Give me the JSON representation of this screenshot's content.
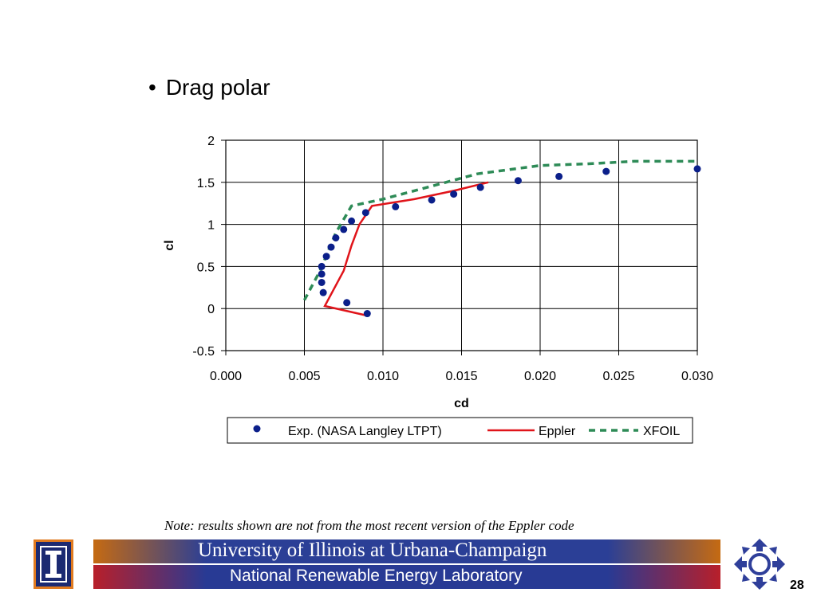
{
  "slide": {
    "bullet": "•",
    "title": "Drag polar",
    "note": "Note: results shown are not from the most recent version of the Eppler code",
    "page_number": "28"
  },
  "footer": {
    "university": "University of Illinois at Urbana-Champaign",
    "lab": "National Renewable Energy Laboratory"
  },
  "chart_data": {
    "type": "scatter",
    "xlabel": "cd",
    "ylabel": "cl",
    "xlim": [
      0.0,
      0.03
    ],
    "ylim": [
      -0.5,
      2
    ],
    "x_ticks": [
      "0.000",
      "0.005",
      "0.010",
      "0.015",
      "0.020",
      "0.025",
      "0.030"
    ],
    "y_ticks": [
      "2",
      "1.5",
      "1",
      "0.5",
      "0",
      "-0.5"
    ],
    "grid": true,
    "legend_position": "bottom",
    "series": [
      {
        "name": "Exp. (NASA Langley LTPT)",
        "style": "markers",
        "color": "#0b1f8a",
        "points": [
          [
            0.009,
            -0.06
          ],
          [
            0.0077,
            0.07
          ],
          [
            0.0062,
            0.19
          ],
          [
            0.0061,
            0.31
          ],
          [
            0.0061,
            0.41
          ],
          [
            0.0061,
            0.5
          ],
          [
            0.0064,
            0.62
          ],
          [
            0.0067,
            0.73
          ],
          [
            0.007,
            0.84
          ],
          [
            0.0075,
            0.94
          ],
          [
            0.008,
            1.04
          ],
          [
            0.0089,
            1.14
          ],
          [
            0.0108,
            1.21
          ],
          [
            0.0131,
            1.29
          ],
          [
            0.0145,
            1.36
          ],
          [
            0.0162,
            1.44
          ],
          [
            0.0186,
            1.52
          ],
          [
            0.0212,
            1.57
          ],
          [
            0.0242,
            1.63
          ],
          [
            0.03,
            1.66
          ]
        ]
      },
      {
        "name": "Eppler",
        "style": "line",
        "color": "#e0141a",
        "points": [
          [
            0.0089,
            -0.08
          ],
          [
            0.0063,
            0.03
          ],
          [
            0.0075,
            0.45
          ],
          [
            0.008,
            0.75
          ],
          [
            0.0085,
            1.0
          ],
          [
            0.0093,
            1.22
          ],
          [
            0.012,
            1.3
          ],
          [
            0.0145,
            1.4
          ],
          [
            0.0167,
            1.5
          ]
        ]
      },
      {
        "name": "XFOIL",
        "style": "dashed",
        "color": "#2e8b57",
        "points": [
          [
            0.005,
            0.1
          ],
          [
            0.006,
            0.45
          ],
          [
            0.007,
            0.9
          ],
          [
            0.008,
            1.22
          ],
          [
            0.01,
            1.3
          ],
          [
            0.013,
            1.45
          ],
          [
            0.016,
            1.6
          ],
          [
            0.02,
            1.7
          ],
          [
            0.023,
            1.72
          ],
          [
            0.026,
            1.75
          ],
          [
            0.03,
            1.75
          ]
        ]
      }
    ]
  }
}
